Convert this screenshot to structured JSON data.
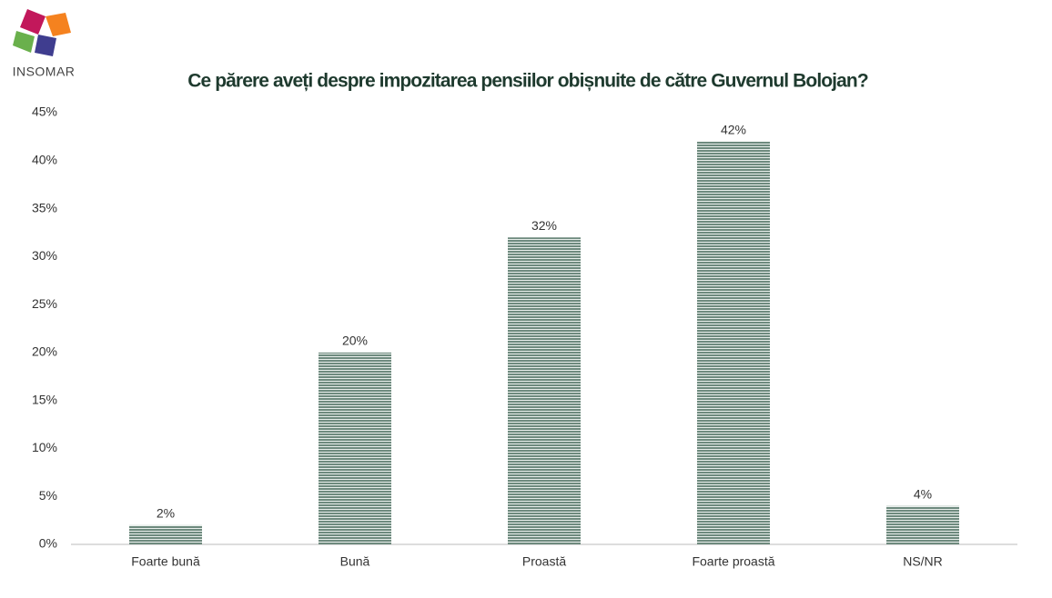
{
  "logo": {
    "text": "INSOMAR"
  },
  "chart_data": {
    "type": "bar",
    "title": "Ce părere aveți despre impozitarea pensiilor obișnuite de către Guvernul Bolojan?",
    "categories": [
      "Foarte bună",
      "Bună",
      "Proastă",
      "Foarte proastă",
      "NS/NR"
    ],
    "values": [
      2,
      20,
      32,
      42,
      4
    ],
    "value_labels": [
      "2%",
      "20%",
      "32%",
      "42%",
      "4%"
    ],
    "color": "#6e8a7e",
    "ylim": [
      0,
      45
    ],
    "yticks": [
      {
        "value": 0,
        "label": "0%"
      },
      {
        "value": 5,
        "label": "5%"
      },
      {
        "value": 10,
        "label": "10%"
      },
      {
        "value": 15,
        "label": "15%"
      },
      {
        "value": 20,
        "label": "20%"
      },
      {
        "value": 25,
        "label": "25%"
      },
      {
        "value": 30,
        "label": "30%"
      },
      {
        "value": 35,
        "label": "35%"
      },
      {
        "value": 40,
        "label": "40%"
      },
      {
        "value": 45,
        "label": "45%"
      }
    ],
    "grid": false
  }
}
